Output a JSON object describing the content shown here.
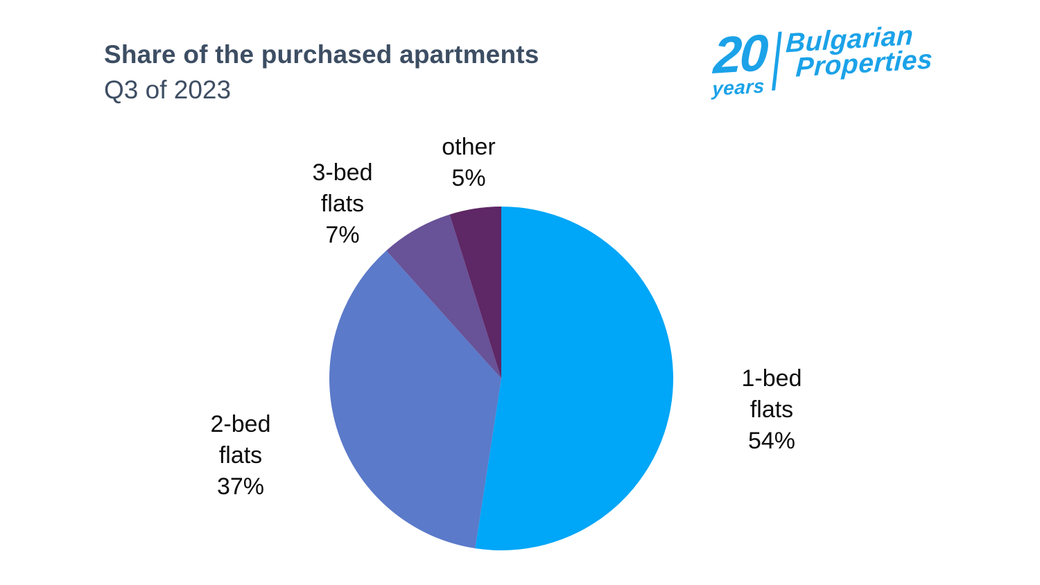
{
  "page": {
    "title": "Share of the purchased apartments",
    "subtitle": "Q3 of 2023"
  },
  "logo": {
    "years_number": "20",
    "years_word": "years",
    "brand_line1": "Bulgarian",
    "brand_line2": "Properties"
  },
  "colors": {
    "background": "#ffffff",
    "brand_blue": "#1ba2e8",
    "title_text": "#3d4e63",
    "label_text": "#0d0d0d"
  },
  "chart_data": {
    "type": "pie",
    "title": "Share of the purchased apartments",
    "subtitle": "Q3 of 2023",
    "start_angle_deg": 0,
    "direction": "clockwise",
    "legend": "none",
    "slices": [
      {
        "label": "1-bed flats",
        "value_pct": 54,
        "color": "#00a6f7",
        "label_lines": [
          "1-bed",
          "flats",
          "54%"
        ]
      },
      {
        "label": "2-bed flats",
        "value_pct": 37,
        "color": "#5b7ac9",
        "label_lines": [
          "2-bed",
          "flats",
          "37%"
        ]
      },
      {
        "label": "3-bed flats",
        "value_pct": 7,
        "color": "#685298",
        "label_lines": [
          "3-bed",
          "flats",
          "7%"
        ]
      },
      {
        "label": "other",
        "value_pct": 5,
        "color": "#5e2765",
        "label_lines": [
          "other",
          "5%"
        ]
      }
    ]
  }
}
